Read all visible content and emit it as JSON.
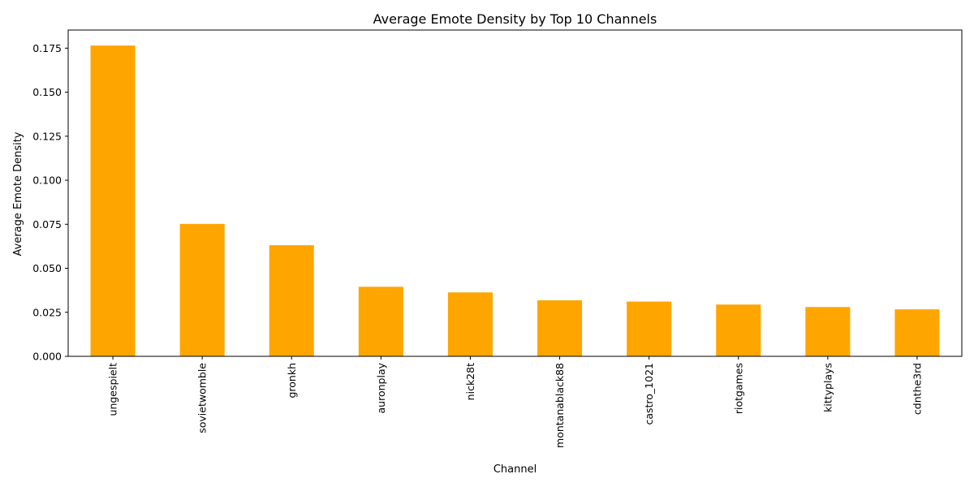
{
  "chart_data": {
    "type": "bar",
    "title": "Average Emote Density by Top 10 Channels",
    "xlabel": "Channel",
    "ylabel": "Average Emote Density",
    "categories": [
      "ungespielt",
      "sovietwomble",
      "gronkh",
      "auronplay",
      "nick28t",
      "montanablack88",
      "castro_1021",
      "riotgames",
      "kittyplays",
      "cdnthe3rd"
    ],
    "values": [
      0.1765,
      0.0752,
      0.0631,
      0.0395,
      0.0363,
      0.0318,
      0.0311,
      0.0294,
      0.028,
      0.0267
    ],
    "ylim": [
      0,
      0.1853
    ],
    "yticks": [
      "0.000",
      "0.025",
      "0.050",
      "0.075",
      "0.100",
      "0.125",
      "0.150",
      "0.175"
    ],
    "bar_color": "#FFA500",
    "grid": false,
    "legend": "none"
  }
}
